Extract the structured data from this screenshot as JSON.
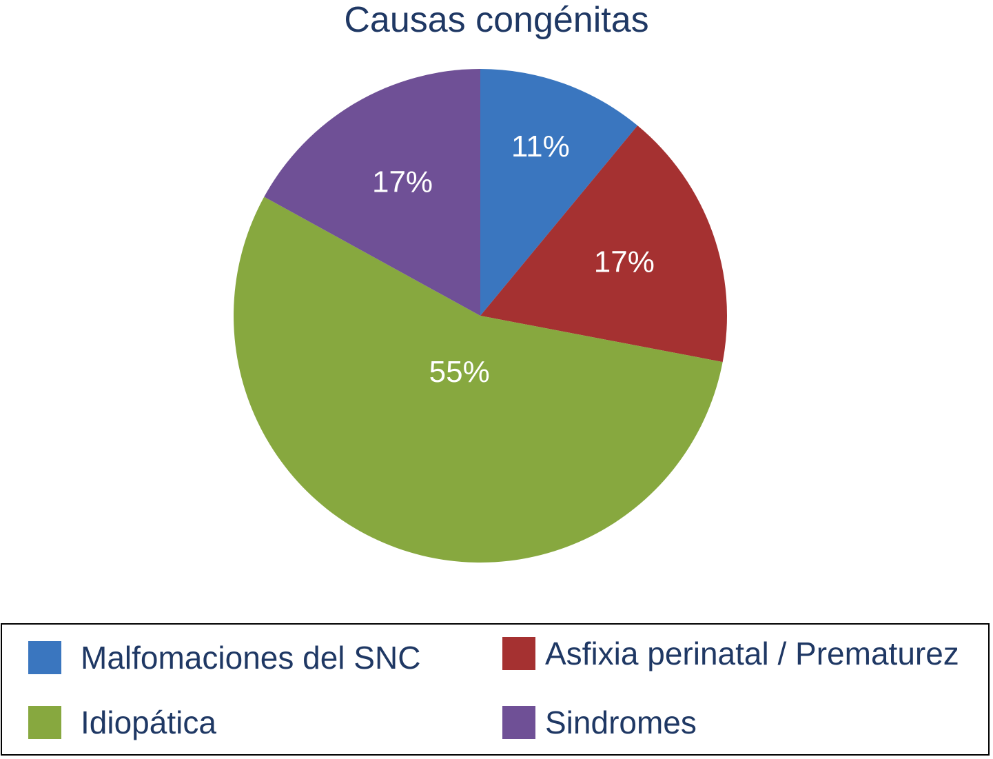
{
  "chart_data": {
    "type": "pie",
    "title": "Causas congénitas",
    "categories": [
      "Malfomaciones del SNC",
      "Asfixia perinatal / Prematurez",
      "Idiopática",
      "Sindromes"
    ],
    "values": [
      11,
      17,
      55,
      17
    ],
    "slice_order": [
      "Malfomaciones del SNC",
      "Asfixia perinatal / Prematurez",
      "Idiopática",
      "Sindromes"
    ],
    "data_labels": [
      "11%",
      "17%",
      "55%",
      "17%"
    ],
    "colors": [
      "#3a76bf",
      "#a53131",
      "#87a83f",
      "#6f5096"
    ],
    "start": "12 o'clock, clockwise",
    "legend_position": "bottom"
  }
}
